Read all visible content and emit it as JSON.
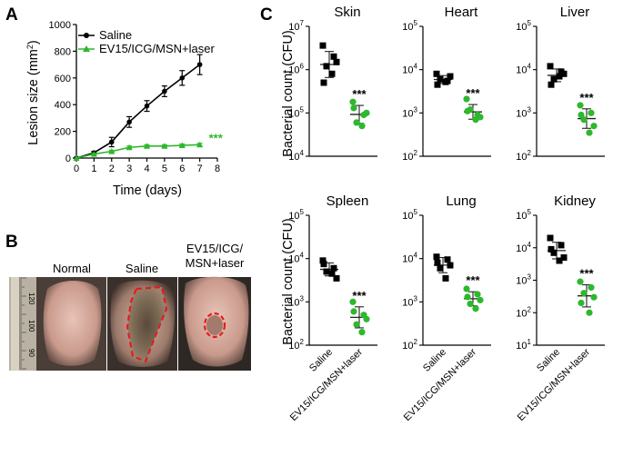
{
  "panel_labels": {
    "a": "A",
    "b": "B",
    "c": "C"
  },
  "colors": {
    "saline": "#000000",
    "treated": "#2db82d",
    "wound_outline": "#e41c1c"
  },
  "photo_panel": {
    "labels": [
      "Normal",
      "Saline",
      "EV15/ICG/",
      "MSN+laser"
    ],
    "ruler_marks": [
      "120",
      "100",
      "90"
    ]
  },
  "chart_data": [
    {
      "type": "line",
      "xlabel": "Time (days)",
      "ylabel_prefix": "Lesion size (mm",
      "ylabel_sup": "2",
      "ylabel_suffix": ")",
      "xlim": [
        0,
        8
      ],
      "ylim": [
        0,
        1000
      ],
      "x_ticks": [
        0,
        1,
        2,
        3,
        4,
        5,
        6,
        7,
        8
      ],
      "y_ticks": [
        0,
        200,
        400,
        600,
        800,
        1000
      ],
      "legend_position": "top-left",
      "significance": "***",
      "series": [
        {
          "name": "Saline",
          "marker": "circle",
          "x": [
            0,
            1,
            2,
            3,
            4,
            5,
            6,
            7
          ],
          "y": [
            0,
            40,
            120,
            270,
            390,
            500,
            600,
            700
          ],
          "err": [
            0,
            10,
            35,
            40,
            40,
            40,
            55,
            75
          ]
        },
        {
          "name": "EV15/ICG/MSN+laser",
          "marker": "triangle",
          "x": [
            0,
            1,
            2,
            3,
            4,
            5,
            6,
            7
          ],
          "y": [
            0,
            30,
            50,
            80,
            90,
            90,
            95,
            100
          ],
          "err": [
            0,
            5,
            8,
            10,
            10,
            10,
            10,
            10
          ]
        }
      ]
    },
    {
      "type": "scatter",
      "ylabel": "Bacterial count (CFU)",
      "log_scale": true,
      "groups": [
        "Saline",
        "EV15/ICG/MSN+laser"
      ],
      "significance": "***",
      "subplots": [
        {
          "title": "Skin",
          "ylim_exp": [
            4,
            7
          ],
          "tick_exps": [
            4,
            5,
            6,
            7
          ],
          "saline": [
            3600000,
            2000000,
            1200000,
            1500000,
            500000,
            800000
          ],
          "treated": [
            180000,
            90000,
            60000,
            100000,
            130000,
            50000
          ]
        },
        {
          "title": "Heart",
          "ylim_exp": [
            2,
            5
          ],
          "tick_exps": [
            2,
            3,
            4,
            5
          ],
          "saline": [
            8000,
            5500,
            6000,
            7000,
            4500,
            5200
          ],
          "treated": [
            2100,
            900,
            1200,
            800,
            1100,
            700
          ]
        },
        {
          "title": "Liver",
          "ylim_exp": [
            2,
            5
          ],
          "tick_exps": [
            2,
            3,
            4,
            5
          ],
          "saline": [
            12000,
            9000,
            6000,
            8000,
            4500,
            7000
          ],
          "treated": [
            1500,
            1000,
            700,
            500,
            900,
            350
          ]
        },
        {
          "title": "Spleen",
          "ylim_exp": [
            2,
            5
          ],
          "tick_exps": [
            2,
            3,
            4,
            5
          ],
          "saline": [
            9000,
            6000,
            5000,
            3500,
            7500,
            4500
          ],
          "treated": [
            1000,
            500,
            300,
            400,
            600,
            200
          ]
        },
        {
          "title": "Lung",
          "ylim_exp": [
            2,
            5
          ],
          "tick_exps": [
            2,
            3,
            4,
            5
          ],
          "saline": [
            11000,
            9500,
            6000,
            7000,
            8000,
            3500
          ],
          "treated": [
            2000,
            1500,
            900,
            1100,
            1300,
            700
          ]
        },
        {
          "title": "Kidney",
          "ylim_exp": [
            1,
            5
          ],
          "tick_exps": [
            1,
            2,
            3,
            4,
            5
          ],
          "saline": [
            20000,
            12000,
            7000,
            5000,
            9000,
            4000
          ],
          "treated": [
            900,
            600,
            400,
            300,
            200,
            100
          ]
        }
      ]
    }
  ]
}
